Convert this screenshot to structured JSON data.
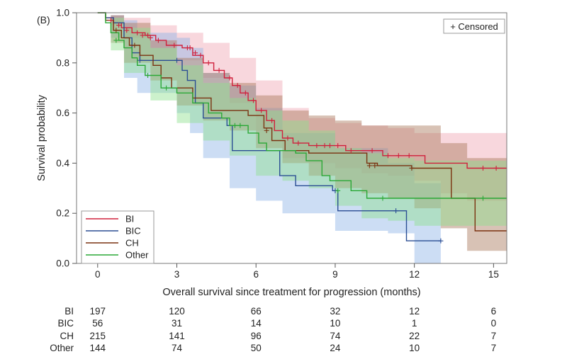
{
  "panel_label": "(B)",
  "censored_label": "+ Censored",
  "colors": {
    "BI": "#d0203c",
    "BIC": "#2b4e94",
    "CH": "#7a3210",
    "Other": "#2aa836"
  },
  "band_colors": {
    "BI": "#f0a6b4",
    "BIC": "#8fb3e6",
    "CH": "#a8785a",
    "Other": "#8fe08f"
  },
  "chart_data": {
    "type": "line",
    "subtype": "kaplan-meier",
    "xlabel": "Overall survival since treatment for progression (months)",
    "ylabel": "Survival probability",
    "xlim": [
      -0.8,
      15.5
    ],
    "ylim": [
      0.0,
      1.0
    ],
    "x_ticks": [
      0,
      3,
      6,
      9,
      12,
      15
    ],
    "y_ticks": [
      0.0,
      0.2,
      0.4,
      0.6,
      0.8,
      1.0
    ],
    "grid": false,
    "legend_position": "bottom-left",
    "series": [
      {
        "name": "BI",
        "steps": [
          [
            0,
            1.0
          ],
          [
            0.3,
            0.98
          ],
          [
            0.6,
            0.96
          ],
          [
            0.9,
            0.94
          ],
          [
            1.3,
            0.92
          ],
          [
            1.8,
            0.91
          ],
          [
            2.2,
            0.89
          ],
          [
            2.6,
            0.87
          ],
          [
            3.2,
            0.86
          ],
          [
            3.6,
            0.83
          ],
          [
            4.0,
            0.8
          ],
          [
            4.4,
            0.77
          ],
          [
            4.8,
            0.74
          ],
          [
            5.1,
            0.71
          ],
          [
            5.4,
            0.68
          ],
          [
            5.7,
            0.65
          ],
          [
            6.0,
            0.61
          ],
          [
            6.4,
            0.57
          ],
          [
            6.7,
            0.53
          ],
          [
            7.0,
            0.5
          ],
          [
            7.4,
            0.48
          ],
          [
            8.0,
            0.47
          ],
          [
            9.4,
            0.45
          ],
          [
            10.8,
            0.43
          ],
          [
            12.4,
            0.4
          ],
          [
            14.0,
            0.38
          ],
          [
            15.5,
            0.38
          ]
        ],
        "censors": [
          [
            0.5,
            0.97
          ],
          [
            0.8,
            0.95
          ],
          [
            1.1,
            0.93
          ],
          [
            1.5,
            0.92
          ],
          [
            1.7,
            0.91
          ],
          [
            1.9,
            0.91
          ],
          [
            2.0,
            0.9
          ],
          [
            2.3,
            0.89
          ],
          [
            2.9,
            0.87
          ],
          [
            3.4,
            0.86
          ],
          [
            3.5,
            0.86
          ],
          [
            3.7,
            0.84
          ],
          [
            3.9,
            0.83
          ],
          [
            4.2,
            0.8
          ],
          [
            4.6,
            0.77
          ],
          [
            5.0,
            0.74
          ],
          [
            5.3,
            0.71
          ],
          [
            5.6,
            0.68
          ],
          [
            5.9,
            0.65
          ],
          [
            6.2,
            0.61
          ],
          [
            6.6,
            0.57
          ],
          [
            7.2,
            0.5
          ],
          [
            7.6,
            0.48
          ],
          [
            8.3,
            0.47
          ],
          [
            8.6,
            0.47
          ],
          [
            8.8,
            0.47
          ],
          [
            9.1,
            0.47
          ],
          [
            9.6,
            0.45
          ],
          [
            10.4,
            0.45
          ],
          [
            11.0,
            0.43
          ],
          [
            11.4,
            0.43
          ],
          [
            11.8,
            0.43
          ],
          [
            14.6,
            0.38
          ],
          [
            15.1,
            0.38
          ]
        ],
        "lower": [
          [
            0,
            1.0
          ],
          [
            0.5,
            0.95
          ],
          [
            1.0,
            0.9
          ],
          [
            2.0,
            0.86
          ],
          [
            3.0,
            0.81
          ],
          [
            4.0,
            0.74
          ],
          [
            5.0,
            0.64
          ],
          [
            6.0,
            0.53
          ],
          [
            7.0,
            0.42
          ],
          [
            8.0,
            0.4
          ],
          [
            9.0,
            0.38
          ],
          [
            10.0,
            0.36
          ],
          [
            11.0,
            0.35
          ],
          [
            12.0,
            0.33
          ],
          [
            13.0,
            0.28
          ],
          [
            14.0,
            0.25
          ],
          [
            15.5,
            0.25
          ]
        ],
        "upper": [
          [
            0,
            1.0
          ],
          [
            0.5,
            0.99
          ],
          [
            1.0,
            0.98
          ],
          [
            2.0,
            0.95
          ],
          [
            3.0,
            0.92
          ],
          [
            4.0,
            0.88
          ],
          [
            5.0,
            0.82
          ],
          [
            6.0,
            0.73
          ],
          [
            7.0,
            0.62
          ],
          [
            8.0,
            0.58
          ],
          [
            9.0,
            0.56
          ],
          [
            10.0,
            0.55
          ],
          [
            11.0,
            0.54
          ],
          [
            12.0,
            0.52
          ],
          [
            13.0,
            0.52
          ],
          [
            14.0,
            0.52
          ],
          [
            15.5,
            0.52
          ]
        ],
        "at_risk": [
          197,
          120,
          66,
          32,
          12,
          6
        ]
      },
      {
        "name": "BIC",
        "steps": [
          [
            0,
            1.0
          ],
          [
            0.3,
            0.98
          ],
          [
            0.6,
            0.96
          ],
          [
            1.0,
            0.9
          ],
          [
            1.3,
            0.84
          ],
          [
            1.6,
            0.81
          ],
          [
            3.2,
            0.77
          ],
          [
            3.4,
            0.73
          ],
          [
            3.7,
            0.64
          ],
          [
            4.0,
            0.58
          ],
          [
            4.9,
            0.55
          ],
          [
            5.1,
            0.45
          ],
          [
            6.0,
            0.45
          ],
          [
            6.9,
            0.35
          ],
          [
            7.5,
            0.31
          ],
          [
            8.9,
            0.29
          ],
          [
            9.1,
            0.21
          ],
          [
            11.3,
            0.21
          ],
          [
            11.7,
            0.09
          ],
          [
            13.0,
            0.09
          ]
        ],
        "censors": [
          [
            1.6,
            0.81
          ],
          [
            3.0,
            0.81
          ],
          [
            9.0,
            0.29
          ],
          [
            11.3,
            0.21
          ],
          [
            13.0,
            0.09
          ]
        ],
        "lower": [
          [
            0,
            1.0
          ],
          [
            0.5,
            0.9
          ],
          [
            1.0,
            0.74
          ],
          [
            1.5,
            0.68
          ],
          [
            3.0,
            0.6
          ],
          [
            3.5,
            0.52
          ],
          [
            4.0,
            0.42
          ],
          [
            5.0,
            0.3
          ],
          [
            6.0,
            0.25
          ],
          [
            7.0,
            0.2
          ],
          [
            9.0,
            0.13
          ],
          [
            11.0,
            0.12
          ],
          [
            12.0,
            0.0
          ],
          [
            13.0,
            0.0
          ]
        ],
        "upper": [
          [
            0,
            1.0
          ],
          [
            0.5,
            0.99
          ],
          [
            1.0,
            0.97
          ],
          [
            1.5,
            0.92
          ],
          [
            3.0,
            0.9
          ],
          [
            3.5,
            0.86
          ],
          [
            4.0,
            0.76
          ],
          [
            5.0,
            0.71
          ],
          [
            6.0,
            0.62
          ],
          [
            7.0,
            0.52
          ],
          [
            9.0,
            0.46
          ],
          [
            11.0,
            0.4
          ],
          [
            12.0,
            0.32
          ],
          [
            13.0,
            0.32
          ]
        ],
        "at_risk": [
          56,
          31,
          14,
          10,
          1,
          0
        ]
      },
      {
        "name": "CH",
        "steps": [
          [
            0,
            1.0
          ],
          [
            0.3,
            0.97
          ],
          [
            0.6,
            0.93
          ],
          [
            0.9,
            0.9
          ],
          [
            1.2,
            0.87
          ],
          [
            1.6,
            0.83
          ],
          [
            2.1,
            0.79
          ],
          [
            2.4,
            0.74
          ],
          [
            2.8,
            0.7
          ],
          [
            3.6,
            0.66
          ],
          [
            4.3,
            0.61
          ],
          [
            5.7,
            0.59
          ],
          [
            6.3,
            0.54
          ],
          [
            6.6,
            0.49
          ],
          [
            7.1,
            0.45
          ],
          [
            8.0,
            0.44
          ],
          [
            10.2,
            0.4
          ],
          [
            10.6,
            0.39
          ],
          [
            11.9,
            0.38
          ],
          [
            13.4,
            0.26
          ],
          [
            14.3,
            0.13
          ],
          [
            15.5,
            0.13
          ]
        ],
        "censors": [
          [
            0.7,
            0.93
          ],
          [
            1.4,
            0.87
          ],
          [
            6.4,
            0.53
          ],
          [
            10.3,
            0.39
          ],
          [
            10.5,
            0.39
          ],
          [
            11.9,
            0.38
          ]
        ],
        "lower": [
          [
            0,
            1.0
          ],
          [
            0.5,
            0.88
          ],
          [
            1.0,
            0.8
          ],
          [
            2.0,
            0.73
          ],
          [
            3.0,
            0.63
          ],
          [
            4.0,
            0.57
          ],
          [
            5.0,
            0.53
          ],
          [
            6.0,
            0.46
          ],
          [
            7.0,
            0.4
          ],
          [
            8.0,
            0.35
          ],
          [
            9.0,
            0.3
          ],
          [
            10.0,
            0.28
          ],
          [
            11.0,
            0.26
          ],
          [
            12.0,
            0.22
          ],
          [
            13.0,
            0.14
          ],
          [
            14.0,
            0.05
          ],
          [
            15.5,
            0.01
          ]
        ],
        "upper": [
          [
            0,
            1.0
          ],
          [
            0.5,
            0.99
          ],
          [
            1.0,
            0.96
          ],
          [
            2.0,
            0.89
          ],
          [
            3.0,
            0.82
          ],
          [
            4.0,
            0.76
          ],
          [
            5.0,
            0.72
          ],
          [
            6.0,
            0.67
          ],
          [
            7.0,
            0.61
          ],
          [
            8.0,
            0.59
          ],
          [
            9.0,
            0.57
          ],
          [
            10.0,
            0.55
          ],
          [
            11.0,
            0.55
          ],
          [
            12.0,
            0.55
          ],
          [
            13.0,
            0.48
          ],
          [
            14.0,
            0.42
          ],
          [
            15.5,
            0.4
          ]
        ],
        "at_risk": [
          215,
          141,
          96,
          74,
          22,
          7
        ]
      },
      {
        "name": "Other",
        "steps": [
          [
            0,
            1.0
          ],
          [
            0.3,
            0.96
          ],
          [
            0.5,
            0.92
          ],
          [
            0.8,
            0.89
          ],
          [
            1.0,
            0.86
          ],
          [
            1.3,
            0.82
          ],
          [
            1.5,
            0.79
          ],
          [
            1.8,
            0.75
          ],
          [
            2.4,
            0.7
          ],
          [
            3.0,
            0.68
          ],
          [
            3.6,
            0.64
          ],
          [
            4.2,
            0.6
          ],
          [
            4.7,
            0.58
          ],
          [
            5.0,
            0.55
          ],
          [
            5.7,
            0.52
          ],
          [
            6.1,
            0.48
          ],
          [
            6.4,
            0.45
          ],
          [
            7.5,
            0.44
          ],
          [
            7.9,
            0.41
          ],
          [
            8.5,
            0.35
          ],
          [
            8.8,
            0.33
          ],
          [
            9.6,
            0.29
          ],
          [
            10.2,
            0.26
          ],
          [
            15.5,
            0.26
          ]
        ],
        "censors": [
          [
            0.7,
            0.89
          ],
          [
            1.9,
            0.75
          ],
          [
            2.6,
            0.7
          ],
          [
            5.2,
            0.55
          ],
          [
            5.4,
            0.55
          ],
          [
            9.1,
            0.29
          ],
          [
            10.8,
            0.26
          ],
          [
            14.6,
            0.26
          ]
        ],
        "lower": [
          [
            0,
            1.0
          ],
          [
            0.5,
            0.85
          ],
          [
            1.0,
            0.76
          ],
          [
            2.0,
            0.65
          ],
          [
            3.0,
            0.56
          ],
          [
            4.0,
            0.49
          ],
          [
            5.0,
            0.43
          ],
          [
            6.0,
            0.35
          ],
          [
            7.0,
            0.33
          ],
          [
            8.0,
            0.3
          ],
          [
            9.0,
            0.23
          ],
          [
            10.0,
            0.18
          ],
          [
            11.0,
            0.17
          ],
          [
            12.0,
            0.15
          ],
          [
            15.5,
            0.13
          ]
        ],
        "upper": [
          [
            0,
            1.0
          ],
          [
            0.5,
            0.98
          ],
          [
            1.0,
            0.94
          ],
          [
            2.0,
            0.86
          ],
          [
            3.0,
            0.79
          ],
          [
            4.0,
            0.72
          ],
          [
            5.0,
            0.66
          ],
          [
            6.0,
            0.61
          ],
          [
            7.0,
            0.57
          ],
          [
            8.0,
            0.53
          ],
          [
            9.0,
            0.46
          ],
          [
            10.0,
            0.44
          ],
          [
            11.0,
            0.42
          ],
          [
            12.0,
            0.41
          ],
          [
            15.5,
            0.4
          ]
        ],
        "at_risk": [
          144,
          74,
          50,
          24,
          10,
          7
        ]
      }
    ]
  }
}
